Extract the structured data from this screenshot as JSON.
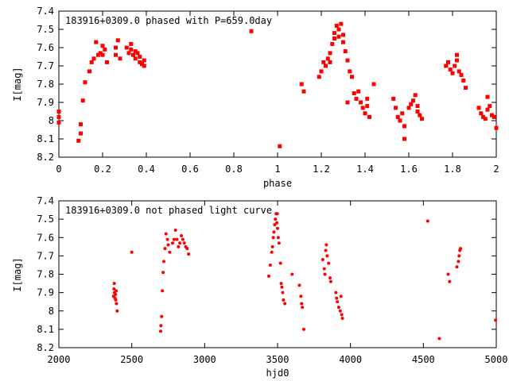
{
  "chart_data": [
    {
      "type": "scatter",
      "title": "183916+0309.0 phased with P=659.0day",
      "xlabel": "phase",
      "ylabel": "I[mag]",
      "xlim": [
        0,
        2
      ],
      "ylim": [
        8.2,
        7.4
      ],
      "y_inverted": true,
      "xticks": [
        "0",
        "0.2",
        "0.4",
        "0.6",
        "0.8",
        "1",
        "1.2",
        "1.4",
        "1.6",
        "1.8",
        "2"
      ],
      "xtick_values": [
        0,
        0.2,
        0.4,
        0.6,
        0.8,
        1.0,
        1.2,
        1.4,
        1.6,
        1.8,
        2.0
      ],
      "yticks": [
        "7.4",
        "7.5",
        "7.6",
        "7.7",
        "7.8",
        "7.9",
        "8",
        "8.1",
        "8.2"
      ],
      "ytick_values": [
        7.4,
        7.5,
        7.6,
        7.7,
        7.8,
        7.9,
        8.0,
        8.1,
        8.2
      ],
      "grid": false,
      "marker_color": "#ff0000",
      "points": [
        [
          0.0,
          7.95
        ],
        [
          0.0,
          7.98
        ],
        [
          0.0,
          8.01
        ],
        [
          0.09,
          8.11
        ],
        [
          0.1,
          8.07
        ],
        [
          0.1,
          8.02
        ],
        [
          0.11,
          7.89
        ],
        [
          0.12,
          7.79
        ],
        [
          0.14,
          7.73
        ],
        [
          0.15,
          7.68
        ],
        [
          0.16,
          7.66
        ],
        [
          0.17,
          7.57
        ],
        [
          0.18,
          7.64
        ],
        [
          0.19,
          7.63
        ],
        [
          0.2,
          7.64
        ],
        [
          0.2,
          7.59
        ],
        [
          0.21,
          7.61
        ],
        [
          0.22,
          7.68
        ],
        [
          0.26,
          7.64
        ],
        [
          0.26,
          7.6
        ],
        [
          0.27,
          7.56
        ],
        [
          0.28,
          7.66
        ],
        [
          0.31,
          7.6
        ],
        [
          0.32,
          7.63
        ],
        [
          0.33,
          7.58
        ],
        [
          0.33,
          7.61
        ],
        [
          0.34,
          7.64
        ],
        [
          0.35,
          7.66
        ],
        [
          0.35,
          7.62
        ],
        [
          0.36,
          7.63
        ],
        [
          0.37,
          7.68
        ],
        [
          0.37,
          7.65
        ],
        [
          0.38,
          7.69
        ],
        [
          0.39,
          7.7
        ],
        [
          0.39,
          7.67
        ],
        [
          0.88,
          7.51
        ],
        [
          1.01,
          8.14
        ],
        [
          1.11,
          7.8
        ],
        [
          1.12,
          7.84
        ],
        [
          1.19,
          7.76
        ],
        [
          1.2,
          7.73
        ],
        [
          1.21,
          7.68
        ],
        [
          1.22,
          7.7
        ],
        [
          1.23,
          7.66
        ],
        [
          1.24,
          7.68
        ],
        [
          1.24,
          7.63
        ],
        [
          1.25,
          7.58
        ],
        [
          1.26,
          7.55
        ],
        [
          1.26,
          7.52
        ],
        [
          1.27,
          7.48
        ],
        [
          1.28,
          7.54
        ],
        [
          1.28,
          7.5
        ],
        [
          1.29,
          7.47
        ],
        [
          1.3,
          7.53
        ],
        [
          1.3,
          7.57
        ],
        [
          1.31,
          7.62
        ],
        [
          1.32,
          7.67
        ],
        [
          1.33,
          7.73
        ],
        [
          1.34,
          7.76
        ],
        [
          1.32,
          7.9
        ],
        [
          1.35,
          7.85
        ],
        [
          1.36,
          7.88
        ],
        [
          1.37,
          7.84
        ],
        [
          1.38,
          7.9
        ],
        [
          1.39,
          7.93
        ],
        [
          1.4,
          7.96
        ],
        [
          1.41,
          7.92
        ],
        [
          1.42,
          7.98
        ],
        [
          1.41,
          7.88
        ],
        [
          1.44,
          7.8
        ],
        [
          1.53,
          7.88
        ],
        [
          1.54,
          7.93
        ],
        [
          1.55,
          7.98
        ],
        [
          1.56,
          8.0
        ],
        [
          1.57,
          7.96
        ],
        [
          1.58,
          8.03
        ],
        [
          1.58,
          8.1
        ],
        [
          1.6,
          7.93
        ],
        [
          1.61,
          7.91
        ],
        [
          1.62,
          7.89
        ],
        [
          1.63,
          7.86
        ],
        [
          1.64,
          7.92
        ],
        [
          1.64,
          7.95
        ],
        [
          1.65,
          7.97
        ],
        [
          1.66,
          7.99
        ],
        [
          1.77,
          7.7
        ],
        [
          1.78,
          7.68
        ],
        [
          1.79,
          7.72
        ],
        [
          1.8,
          7.74
        ],
        [
          1.81,
          7.7
        ],
        [
          1.82,
          7.67
        ],
        [
          1.82,
          7.64
        ],
        [
          1.83,
          7.73
        ],
        [
          1.84,
          7.75
        ],
        [
          1.85,
          7.78
        ],
        [
          1.86,
          7.82
        ],
        [
          1.92,
          7.93
        ],
        [
          1.93,
          7.96
        ],
        [
          1.94,
          7.98
        ],
        [
          1.95,
          7.99
        ],
        [
          1.96,
          7.94
        ],
        [
          1.96,
          7.87
        ],
        [
          1.97,
          7.92
        ],
        [
          1.98,
          7.97
        ],
        [
          1.99,
          7.98
        ],
        [
          2.0,
          8.04
        ]
      ]
    },
    {
      "type": "scatter",
      "title": "183916+0309.0 not phased light curve",
      "xlabel": "hjd0",
      "ylabel": "I[mag]",
      "xlim": [
        2000,
        5000
      ],
      "ylim": [
        8.2,
        7.4
      ],
      "y_inverted": true,
      "xticks": [
        "2000",
        "2500",
        "3000",
        "3500",
        "4000",
        "4500",
        "5000"
      ],
      "xtick_values": [
        2000,
        2500,
        3000,
        3500,
        4000,
        4500,
        5000
      ],
      "yticks": [
        "7.4",
        "7.5",
        "7.6",
        "7.7",
        "7.8",
        "7.9",
        "8",
        "8.1",
        "8.2"
      ],
      "ytick_values": [
        7.4,
        7.5,
        7.6,
        7.7,
        7.8,
        7.9,
        8.0,
        8.1,
        8.2
      ],
      "grid": false,
      "marker_color": "#ff0000",
      "points": [
        [
          2375,
          7.92
        ],
        [
          2378,
          7.88
        ],
        [
          2380,
          7.85
        ],
        [
          2382,
          7.9
        ],
        [
          2385,
          7.93
        ],
        [
          2388,
          7.91
        ],
        [
          2390,
          7.94
        ],
        [
          2393,
          7.89
        ],
        [
          2395,
          7.96
        ],
        [
          2400,
          8.0
        ],
        [
          2500,
          7.68
        ],
        [
          2698,
          8.11
        ],
        [
          2700,
          8.08
        ],
        [
          2705,
          8.03
        ],
        [
          2710,
          7.89
        ],
        [
          2715,
          7.79
        ],
        [
          2720,
          7.73
        ],
        [
          2728,
          7.66
        ],
        [
          2735,
          7.58
        ],
        [
          2745,
          7.61
        ],
        [
          2750,
          7.64
        ],
        [
          2760,
          7.68
        ],
        [
          2780,
          7.63
        ],
        [
          2790,
          7.61
        ],
        [
          2800,
          7.56
        ],
        [
          2810,
          7.61
        ],
        [
          2820,
          7.65
        ],
        [
          2830,
          7.63
        ],
        [
          2840,
          7.59
        ],
        [
          2850,
          7.61
        ],
        [
          2860,
          7.63
        ],
        [
          2870,
          7.65
        ],
        [
          2880,
          7.66
        ],
        [
          2890,
          7.69
        ],
        [
          3440,
          7.81
        ],
        [
          3450,
          7.75
        ],
        [
          3460,
          7.68
        ],
        [
          3465,
          7.65
        ],
        [
          3470,
          7.6
        ],
        [
          3475,
          7.57
        ],
        [
          3480,
          7.53
        ],
        [
          3485,
          7.5
        ],
        [
          3490,
          7.47
        ],
        [
          3495,
          7.52
        ],
        [
          3498,
          7.47
        ],
        [
          3500,
          7.55
        ],
        [
          3505,
          7.6
        ],
        [
          3510,
          7.63
        ],
        [
          3520,
          7.74
        ],
        [
          3525,
          7.85
        ],
        [
          3530,
          7.87
        ],
        [
          3535,
          7.9
        ],
        [
          3540,
          7.94
        ],
        [
          3550,
          7.96
        ],
        [
          3600,
          7.8
        ],
        [
          3650,
          7.86
        ],
        [
          3660,
          7.92
        ],
        [
          3665,
          7.96
        ],
        [
          3670,
          7.98
        ],
        [
          3680,
          8.1
        ],
        [
          3810,
          7.72
        ],
        [
          3820,
          7.77
        ],
        [
          3825,
          7.8
        ],
        [
          3830,
          7.67
        ],
        [
          3835,
          7.64
        ],
        [
          3840,
          7.7
        ],
        [
          3850,
          7.74
        ],
        [
          3860,
          7.82
        ],
        [
          3865,
          7.84
        ],
        [
          3900,
          7.9
        ],
        [
          3905,
          7.93
        ],
        [
          3910,
          7.95
        ],
        [
          3920,
          7.98
        ],
        [
          3930,
          8.0
        ],
        [
          3935,
          7.92
        ],
        [
          3940,
          8.02
        ],
        [
          3945,
          8.04
        ],
        [
          4530,
          7.51
        ],
        [
          4610,
          8.15
        ],
        [
          4670,
          7.8
        ],
        [
          4680,
          7.84
        ],
        [
          4730,
          7.76
        ],
        [
          4740,
          7.73
        ],
        [
          4745,
          7.7
        ],
        [
          4750,
          7.67
        ],
        [
          4755,
          7.66
        ],
        [
          4995,
          8.05
        ]
      ]
    }
  ]
}
